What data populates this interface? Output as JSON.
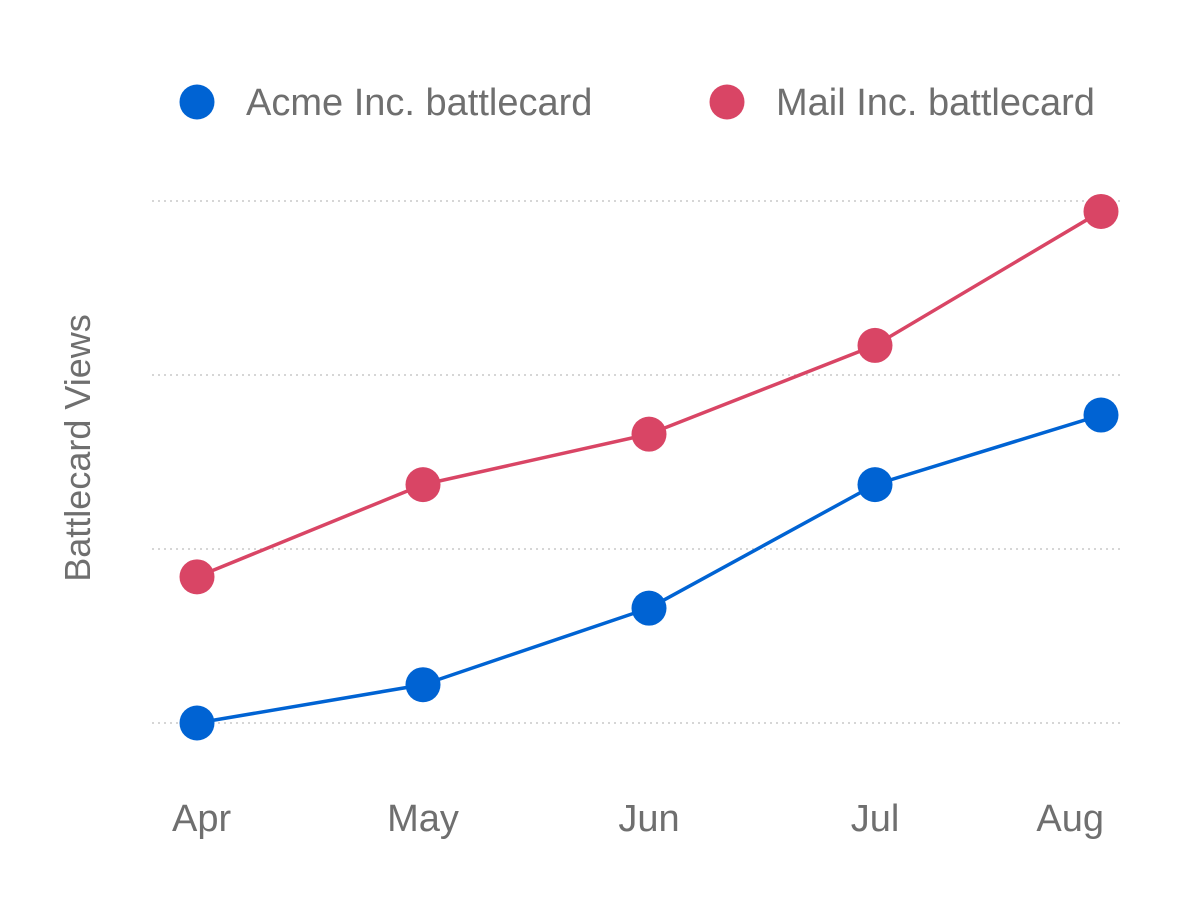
{
  "chart_data": {
    "type": "line",
    "categories": [
      "Apr",
      "May",
      "Jun",
      "Jul",
      "Aug"
    ],
    "ylabel": "Battlecard Views",
    "xlabel": "",
    "title": "",
    "ylim": [
      0,
      3
    ],
    "yticks": [
      0,
      1,
      2,
      3
    ],
    "show_ytick_labels": false,
    "grid": "horizontal-dotted",
    "legend_position": "top",
    "series": [
      {
        "name": "Acme Inc. battlecard",
        "color": "#0063d3",
        "values": [
          0.0,
          0.22,
          0.66,
          1.37,
          1.77
        ]
      },
      {
        "name": "Mail Inc. battlecard",
        "color": "#d94565",
        "values": [
          0.84,
          1.37,
          1.66,
          2.17,
          2.94
        ]
      }
    ]
  }
}
